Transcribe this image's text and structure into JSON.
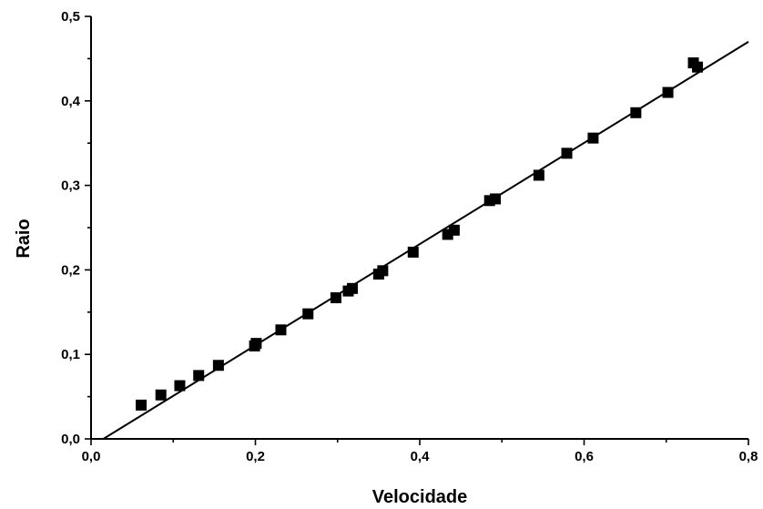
{
  "chart_data": {
    "type": "scatter",
    "title": "",
    "xlabel": "Velocidade",
    "ylabel": "Raio",
    "xlim": [
      0.0,
      0.8
    ],
    "ylim": [
      0.0,
      0.5
    ],
    "grid": false,
    "x_ticks": [
      0.0,
      0.2,
      0.4,
      0.6,
      0.8
    ],
    "x_tick_labels": [
      "0,0",
      "0,2",
      "0,4",
      "0,6",
      "0,8"
    ],
    "y_ticks": [
      0.0,
      0.1,
      0.2,
      0.3,
      0.4,
      0.5
    ],
    "y_tick_labels": [
      "0,0",
      "0,1",
      "0,2",
      "0,3",
      "0,4",
      "0,5"
    ],
    "series": [
      {
        "marker": "square",
        "x": [
          0.061,
          0.085,
          0.108,
          0.131,
          0.155,
          0.199,
          0.201,
          0.231,
          0.264,
          0.298,
          0.313,
          0.318,
          0.35,
          0.355,
          0.392,
          0.434,
          0.442,
          0.485,
          0.492,
          0.545,
          0.579,
          0.611,
          0.663,
          0.702,
          0.733,
          0.738
        ],
        "y": [
          0.04,
          0.052,
          0.063,
          0.075,
          0.087,
          0.11,
          0.113,
          0.129,
          0.148,
          0.167,
          0.175,
          0.178,
          0.195,
          0.199,
          0.221,
          0.242,
          0.247,
          0.282,
          0.284,
          0.312,
          0.338,
          0.356,
          0.386,
          0.41,
          0.445,
          0.44
        ]
      }
    ],
    "fit_line": {
      "x": [
        0.015,
        0.8
      ],
      "y": [
        0.0,
        0.47
      ]
    }
  }
}
